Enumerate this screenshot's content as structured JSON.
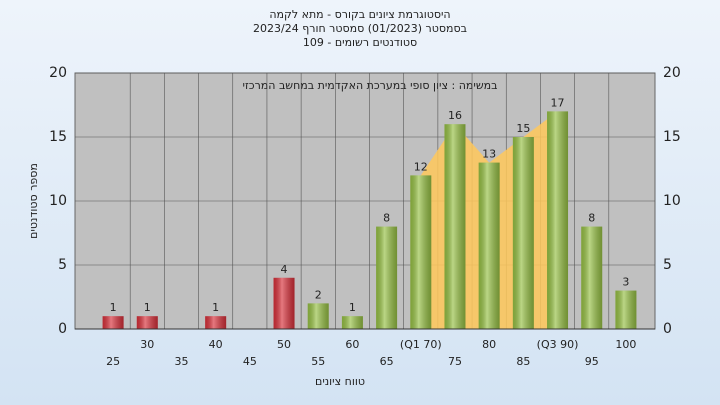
{
  "chart_data": {
    "type": "bar",
    "title": [
      "היסטוגרמת ציונים בקורס - מתא לקמה",
      "בסמסטר  (01/2023)  סמסטר חורף  2023/24",
      "סטודנטים רשומים - 109"
    ],
    "annotation": "במשימה : ציון סופי במערכת האקדמית במחשב המרכזי",
    "x_label": "טווח ציונים",
    "y_label": "מספר סטודנטים",
    "categories": [
      "25",
      "30",
      "35",
      "40",
      "45",
      "50",
      "55",
      "60",
      "65",
      "(Q1 70)",
      "75",
      "80",
      "85",
      "(Q3 90)",
      "95",
      "100"
    ],
    "values": [
      1,
      1,
      0,
      1,
      0,
      4,
      2,
      1,
      8,
      12,
      16,
      13,
      15,
      17,
      8,
      3
    ],
    "colors": [
      "#d8303a",
      "#d8303a",
      "#d8303a",
      "#d8303a",
      "#d8303a",
      "#d8303a",
      "#96c044",
      "#96c044",
      "#96c044",
      "#96c044",
      "#96c044",
      "#96c044",
      "#96c044",
      "#96c044",
      "#96c044",
      "#96c044"
    ],
    "highlight_color": "#ffc85a",
    "ylim": [
      0,
      20
    ],
    "yticks": [
      0,
      5,
      10,
      15,
      20
    ],
    "grid": true
  }
}
